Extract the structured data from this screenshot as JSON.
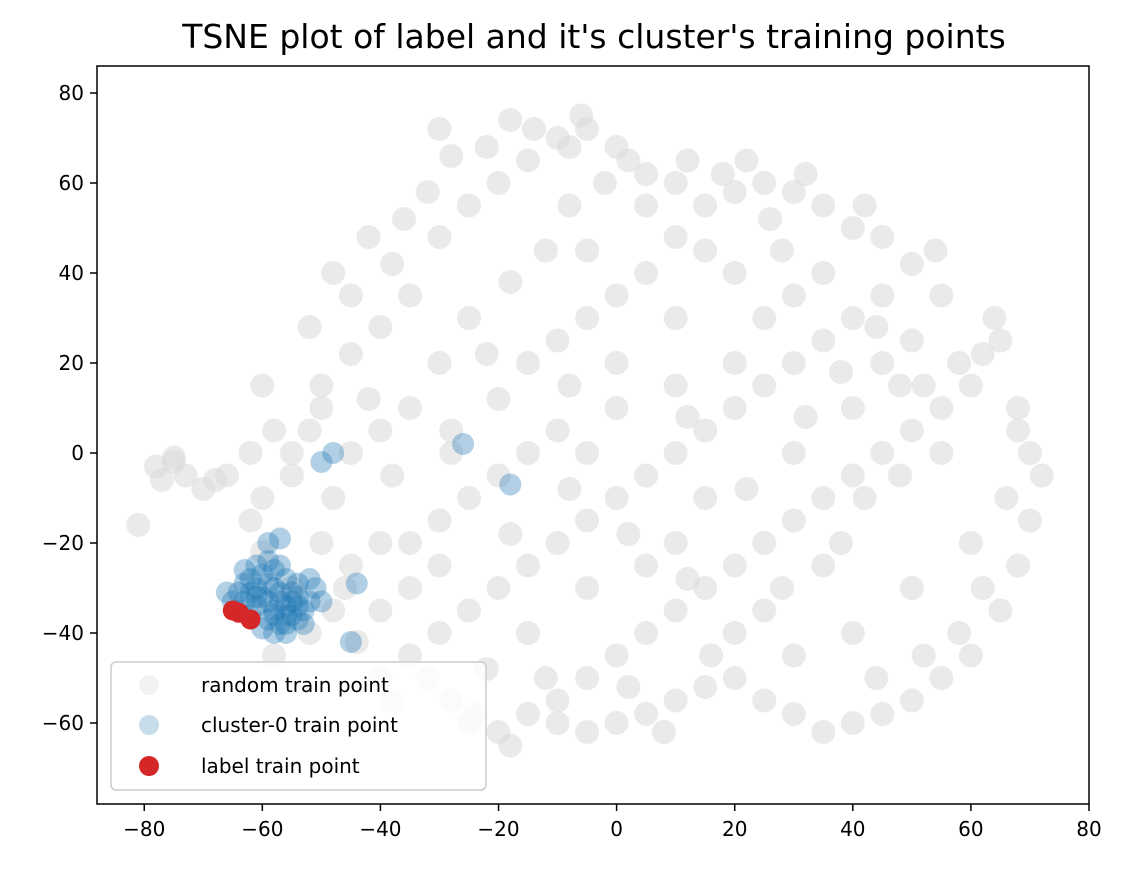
{
  "chart_data": {
    "type": "scatter",
    "title": "TSNE plot of label and it's cluster's training points",
    "xlabel": "",
    "ylabel": "",
    "xlim": [
      -88,
      80
    ],
    "ylim": [
      -78,
      86
    ],
    "xticks": [
      -80,
      -60,
      -40,
      -20,
      0,
      20,
      40,
      60,
      80
    ],
    "yticks": [
      80,
      60,
      40,
      20,
      0,
      -20,
      -40,
      -60
    ],
    "xtick_labels": [
      "−80",
      "−60",
      "−40",
      "−20",
      "0",
      "20",
      "40",
      "60",
      "80"
    ],
    "ytick_labels": [
      "80",
      "60",
      "40",
      "20",
      "0",
      "−20",
      "−40",
      "−60"
    ],
    "grid": false,
    "legend_position": "lower-left",
    "series": [
      {
        "name": "random train point",
        "color": "#d9d9d9",
        "points": [
          [
            -78,
            -3
          ],
          [
            -77,
            -6
          ],
          [
            -75,
            -2
          ],
          [
            -73,
            -5
          ],
          [
            -70,
            -8
          ],
          [
            -68,
            -6
          ],
          [
            -66,
            -5
          ],
          [
            -81,
            -16
          ],
          [
            -75,
            -1
          ],
          [
            -62,
            -15
          ],
          [
            -60,
            -22
          ],
          [
            -58,
            -45
          ],
          [
            -55,
            -30
          ],
          [
            -52,
            -40
          ],
          [
            -50,
            -20
          ],
          [
            -48,
            -10
          ],
          [
            -45,
            0
          ],
          [
            -55,
            -5
          ],
          [
            -52,
            5
          ],
          [
            -50,
            15
          ],
          [
            -45,
            22
          ],
          [
            -40,
            28
          ],
          [
            -35,
            35
          ],
          [
            -38,
            42
          ],
          [
            -30,
            48
          ],
          [
            -25,
            55
          ],
          [
            -20,
            60
          ],
          [
            -15,
            65
          ],
          [
            -10,
            70
          ],
          [
            -5,
            72
          ],
          [
            0,
            68
          ],
          [
            5,
            62
          ],
          [
            -8,
            55
          ],
          [
            -12,
            45
          ],
          [
            -18,
            38
          ],
          [
            -25,
            30
          ],
          [
            -30,
            20
          ],
          [
            -35,
            10
          ],
          [
            -40,
            5
          ],
          [
            -28,
            5
          ],
          [
            -20,
            12
          ],
          [
            -15,
            20
          ],
          [
            -10,
            25
          ],
          [
            -5,
            30
          ],
          [
            0,
            35
          ],
          [
            5,
            40
          ],
          [
            10,
            48
          ],
          [
            15,
            55
          ],
          [
            20,
            58
          ],
          [
            25,
            60
          ],
          [
            30,
            58
          ],
          [
            35,
            55
          ],
          [
            40,
            50
          ],
          [
            45,
            48
          ],
          [
            50,
            42
          ],
          [
            45,
            35
          ],
          [
            40,
            30
          ],
          [
            35,
            25
          ],
          [
            30,
            20
          ],
          [
            25,
            15
          ],
          [
            20,
            10
          ],
          [
            15,
            5
          ],
          [
            10,
            0
          ],
          [
            5,
            -5
          ],
          [
            0,
            -10
          ],
          [
            -5,
            -15
          ],
          [
            -10,
            -20
          ],
          [
            -15,
            -25
          ],
          [
            -20,
            -30
          ],
          [
            -25,
            -35
          ],
          [
            -30,
            -40
          ],
          [
            -35,
            -45
          ],
          [
            -32,
            -50
          ],
          [
            -28,
            -55
          ],
          [
            -25,
            -60
          ],
          [
            -20,
            -62
          ],
          [
            -15,
            -58
          ],
          [
            -10,
            -55
          ],
          [
            -5,
            -50
          ],
          [
            0,
            -45
          ],
          [
            5,
            -40
          ],
          [
            10,
            -35
          ],
          [
            15,
            -30
          ],
          [
            20,
            -25
          ],
          [
            25,
            -20
          ],
          [
            30,
            -15
          ],
          [
            35,
            -10
          ],
          [
            40,
            -5
          ],
          [
            45,
            0
          ],
          [
            50,
            5
          ],
          [
            55,
            10
          ],
          [
            60,
            15
          ],
          [
            62,
            22
          ],
          [
            65,
            25
          ],
          [
            68,
            10
          ],
          [
            70,
            0
          ],
          [
            72,
            -5
          ],
          [
            70,
            -15
          ],
          [
            68,
            -25
          ],
          [
            65,
            -35
          ],
          [
            60,
            -45
          ],
          [
            55,
            -50
          ],
          [
            50,
            -55
          ],
          [
            45,
            -58
          ],
          [
            40,
            -60
          ],
          [
            35,
            -62
          ],
          [
            30,
            -58
          ],
          [
            25,
            -55
          ],
          [
            20,
            -50
          ],
          [
            15,
            -52
          ],
          [
            10,
            -55
          ],
          [
            5,
            -58
          ],
          [
            0,
            -60
          ],
          [
            -5,
            -62
          ],
          [
            -10,
            -60
          ],
          [
            -30,
            -15
          ],
          [
            -40,
            -20
          ],
          [
            -45,
            -25
          ],
          [
            -50,
            10
          ],
          [
            -55,
            0
          ],
          [
            -60,
            -10
          ],
          [
            -62,
            0
          ],
          [
            -58,
            5
          ],
          [
            -42,
            12
          ],
          [
            -38,
            -5
          ],
          [
            -20,
            -5
          ],
          [
            -15,
            0
          ],
          [
            -10,
            5
          ],
          [
            0,
            10
          ],
          [
            10,
            15
          ],
          [
            20,
            20
          ],
          [
            25,
            30
          ],
          [
            30,
            35
          ],
          [
            20,
            40
          ],
          [
            10,
            30
          ],
          [
            0,
            20
          ],
          [
            -5,
            45
          ],
          [
            5,
            55
          ],
          [
            15,
            45
          ],
          [
            28,
            45
          ],
          [
            35,
            40
          ],
          [
            45,
            20
          ],
          [
            55,
            0
          ],
          [
            60,
            -20
          ],
          [
            50,
            -30
          ],
          [
            40,
            -40
          ],
          [
            30,
            -45
          ],
          [
            20,
            -40
          ],
          [
            10,
            -20
          ],
          [
            -5,
            -30
          ],
          [
            -15,
            -40
          ],
          [
            -22,
            -48
          ],
          [
            -30,
            -25
          ],
          [
            -35,
            -30
          ],
          [
            -5,
            0
          ],
          [
            15,
            -10
          ],
          [
            30,
            0
          ],
          [
            40,
            10
          ],
          [
            50,
            25
          ],
          [
            55,
            35
          ],
          [
            48,
            15
          ],
          [
            35,
            -25
          ],
          [
            25,
            -35
          ],
          [
            5,
            -25
          ],
          [
            -8,
            15
          ],
          [
            -22,
            22
          ],
          [
            -45,
            35
          ],
          [
            -52,
            28
          ],
          [
            -60,
            15
          ],
          [
            -48,
            -35
          ],
          [
            -44,
            -42
          ],
          [
            -40,
            -50
          ],
          [
            -38,
            -55
          ],
          [
            12,
            65
          ],
          [
            18,
            62
          ],
          [
            26,
            52
          ],
          [
            -2,
            60
          ],
          [
            -6,
            75
          ],
          [
            -14,
            72
          ],
          [
            -22,
            68
          ],
          [
            -28,
            66
          ],
          [
            -32,
            58
          ],
          [
            -36,
            52
          ],
          [
            -42,
            48
          ],
          [
            -48,
            40
          ],
          [
            62,
            -30
          ],
          [
            66,
            -10
          ],
          [
            68,
            5
          ],
          [
            58,
            -40
          ],
          [
            52,
            -45
          ],
          [
            44,
            -50
          ],
          [
            8,
            -62
          ],
          [
            -18,
            -65
          ],
          [
            -24,
            -58
          ],
          [
            -12,
            -50
          ],
          [
            2,
            -52
          ],
          [
            16,
            -45
          ],
          [
            28,
            -30
          ],
          [
            38,
            -20
          ],
          [
            42,
            -10
          ],
          [
            48,
            -5
          ],
          [
            58,
            20
          ],
          [
            64,
            30
          ],
          [
            54,
            45
          ],
          [
            42,
            55
          ],
          [
            32,
            62
          ],
          [
            22,
            65
          ],
          [
            10,
            60
          ],
          [
            -30,
            72
          ],
          [
            -18,
            74
          ],
          [
            -8,
            68
          ],
          [
            2,
            65
          ],
          [
            12,
            8
          ],
          [
            -25,
            -10
          ],
          [
            -35,
            -20
          ],
          [
            -28,
            0
          ],
          [
            -18,
            -18
          ],
          [
            -8,
            -8
          ],
          [
            2,
            -18
          ],
          [
            12,
            -28
          ],
          [
            22,
            -8
          ],
          [
            32,
            8
          ],
          [
            38,
            18
          ],
          [
            44,
            28
          ],
          [
            52,
            15
          ],
          [
            -46,
            -30
          ],
          [
            -40,
            -35
          ]
        ]
      },
      {
        "name": "cluster-0 train point",
        "color": "#1f77b4",
        "points": [
          [
            -64,
            -31
          ],
          [
            -62,
            -28
          ],
          [
            -60,
            -32
          ],
          [
            -58,
            -30
          ],
          [
            -56,
            -34
          ],
          [
            -55,
            -36
          ],
          [
            -57,
            -38
          ],
          [
            -59,
            -37
          ],
          [
            -61,
            -34
          ],
          [
            -63,
            -33
          ],
          [
            -60,
            -27
          ],
          [
            -58,
            -26
          ],
          [
            -56,
            -28
          ],
          [
            -54,
            -32
          ],
          [
            -53,
            -35
          ],
          [
            -55,
            -31
          ],
          [
            -57,
            -33
          ],
          [
            -59,
            -29
          ],
          [
            -61,
            -30
          ],
          [
            -62,
            -36
          ],
          [
            -60,
            -39
          ],
          [
            -58,
            -35
          ],
          [
            -56,
            -38
          ],
          [
            -54,
            -37
          ],
          [
            -52,
            -33
          ],
          [
            -54,
            -29
          ],
          [
            -57,
            -25
          ],
          [
            -59,
            -24
          ],
          [
            -61,
            -25
          ],
          [
            -63,
            -29
          ],
          [
            -62,
            -31
          ],
          [
            -58,
            -40
          ],
          [
            -56,
            -40
          ],
          [
            -53,
            -38
          ],
          [
            -55,
            -33
          ],
          [
            -57,
            -31
          ],
          [
            -59,
            -33
          ],
          [
            -61,
            -32
          ],
          [
            -65,
            -33
          ],
          [
            -64,
            -35
          ],
          [
            -58,
            -36
          ],
          [
            -56,
            -36
          ],
          [
            -54,
            -34
          ],
          [
            -57,
            -19
          ],
          [
            -52,
            -28
          ],
          [
            -50,
            -33
          ],
          [
            -50,
            -2
          ],
          [
            -48,
            0
          ],
          [
            -26,
            2
          ],
          [
            -18,
            -7
          ],
          [
            -44,
            -29
          ],
          [
            -45,
            -42
          ],
          [
            -66,
            -31
          ],
          [
            -63,
            -26
          ],
          [
            -59,
            -20
          ],
          [
            -51,
            -30
          ]
        ]
      },
      {
        "name": "label train point",
        "color": "#d62728",
        "points": [
          [
            -65,
            -35
          ],
          [
            -64,
            -35.5
          ],
          [
            -62,
            -37
          ]
        ]
      }
    ]
  }
}
